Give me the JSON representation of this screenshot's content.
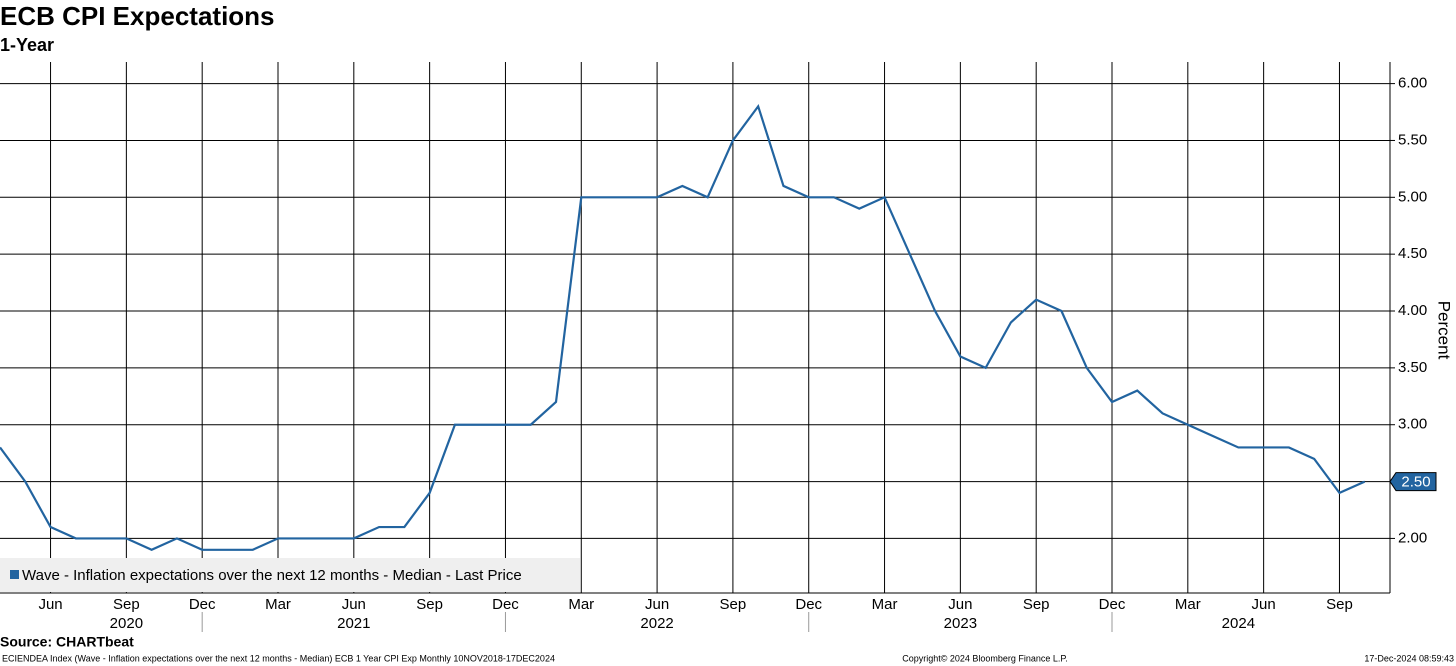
{
  "chart_data": {
    "type": "line",
    "title": "ECB CPI Expectations",
    "subtitle": "1-Year",
    "y_label": "Percent",
    "source": "Source: CHARTbeat",
    "footer_left": "ECIENDEA Index (Wave - Inflation expectations over the next 12 months - Median) ECB 1 Year CPI Exp  Monthly 10NOV2018-17DEC2024",
    "footer_center": "Copyright© 2024 Bloomberg Finance L.P.",
    "footer_right": "17-Dec-2024 08:59:43",
    "x": [
      "2020-04",
      "2020-05",
      "2020-06",
      "2020-07",
      "2020-08",
      "2020-09",
      "2020-10",
      "2020-11",
      "2020-12",
      "2021-01",
      "2021-02",
      "2021-03",
      "2021-04",
      "2021-05",
      "2021-06",
      "2021-07",
      "2021-08",
      "2021-09",
      "2021-10",
      "2021-11",
      "2021-12",
      "2022-01",
      "2022-02",
      "2022-03",
      "2022-04",
      "2022-05",
      "2022-06",
      "2022-07",
      "2022-08",
      "2022-09",
      "2022-10",
      "2022-11",
      "2022-12",
      "2023-01",
      "2023-02",
      "2023-03",
      "2023-04",
      "2023-05",
      "2023-06",
      "2023-07",
      "2023-08",
      "2023-09",
      "2023-10",
      "2023-11",
      "2023-12",
      "2024-01",
      "2024-02",
      "2024-03",
      "2024-04",
      "2024-05",
      "2024-06",
      "2024-07",
      "2024-08",
      "2024-09",
      "2024-10"
    ],
    "series": [
      {
        "name": "Wave - Inflation expectations over the next 12 months - Median - Last Price",
        "color": "#2264a0",
        "values": [
          2.8,
          2.5,
          2.1,
          2.0,
          2.0,
          2.0,
          1.9,
          2.0,
          1.9,
          1.9,
          1.9,
          2.0,
          2.0,
          2.0,
          2.0,
          2.1,
          2.1,
          2.4,
          3.0,
          3.0,
          3.0,
          3.0,
          3.2,
          5.0,
          5.0,
          5.0,
          5.0,
          5.1,
          5.0,
          5.5,
          5.8,
          5.1,
          5.0,
          5.0,
          4.9,
          5.0,
          4.5,
          4.0,
          3.6,
          3.5,
          3.9,
          4.1,
          4.0,
          3.5,
          3.2,
          3.3,
          3.1,
          3.0,
          2.9,
          2.8,
          2.8,
          2.8,
          2.7,
          2.4,
          2.5
        ]
      }
    ],
    "last_value_label": "2.50",
    "xlim": [
      "2020-04",
      "2024-11"
    ],
    "xticks": [
      {
        "value": "2020-06",
        "label": "Jun"
      },
      {
        "value": "2020-09",
        "label": "Sep"
      },
      {
        "value": "2020-12",
        "label": "Dec"
      },
      {
        "value": "2021-03",
        "label": "Mar"
      },
      {
        "value": "2021-06",
        "label": "Jun"
      },
      {
        "value": "2021-09",
        "label": "Sep"
      },
      {
        "value": "2021-12",
        "label": "Dec"
      },
      {
        "value": "2022-03",
        "label": "Mar"
      },
      {
        "value": "2022-06",
        "label": "Jun"
      },
      {
        "value": "2022-09",
        "label": "Sep"
      },
      {
        "value": "2022-12",
        "label": "Dec"
      },
      {
        "value": "2023-03",
        "label": "Mar"
      },
      {
        "value": "2023-06",
        "label": "Jun"
      },
      {
        "value": "2023-09",
        "label": "Sep"
      },
      {
        "value": "2023-12",
        "label": "Dec"
      },
      {
        "value": "2024-03",
        "label": "Mar"
      },
      {
        "value": "2024-06",
        "label": "Jun"
      },
      {
        "value": "2024-09",
        "label": "Sep"
      }
    ],
    "year_labels": [
      {
        "value": "2020-09",
        "label": "2020"
      },
      {
        "value": "2021-06",
        "label": "2021"
      },
      {
        "value": "2022-06",
        "label": "2022"
      },
      {
        "value": "2023-06",
        "label": "2023"
      },
      {
        "value": "2024-05",
        "label": "2024"
      }
    ],
    "ylim": [
      1.52,
      6.19
    ],
    "yticks": [
      {
        "value": 2.0,
        "label": "2.00"
      },
      {
        "value": 2.5,
        "label": "2.50"
      },
      {
        "value": 3.0,
        "label": "3.00"
      },
      {
        "value": 3.5,
        "label": "3.50"
      },
      {
        "value": 4.0,
        "label": "4.00"
      },
      {
        "value": 4.5,
        "label": "4.50"
      },
      {
        "value": 5.0,
        "label": "5.00"
      },
      {
        "value": 5.5,
        "label": "5.50"
      },
      {
        "value": 6.0,
        "label": "6.00"
      }
    ],
    "grid": true
  }
}
